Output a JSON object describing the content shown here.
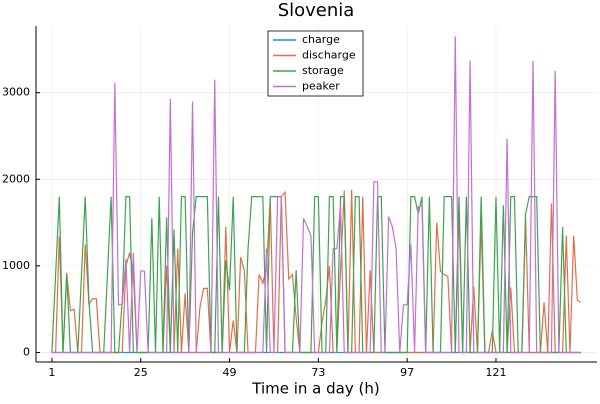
{
  "chart_data": {
    "type": "line",
    "title": "Slovenia",
    "x_label": "Time in a day (h)",
    "x": [
      1,
      2,
      3,
      4,
      5,
      6,
      7,
      8,
      9,
      10,
      11,
      12,
      13,
      14,
      15,
      16,
      17,
      18,
      19,
      20,
      21,
      22,
      23,
      24,
      25,
      26,
      27,
      28,
      29,
      30,
      31,
      32,
      33,
      34,
      35,
      36,
      37,
      38,
      39,
      40,
      41,
      42,
      43,
      44,
      45,
      46,
      47,
      48,
      49,
      50,
      51,
      52,
      53,
      54,
      55,
      56,
      57,
      58,
      59,
      60,
      61,
      62,
      63,
      64,
      65,
      66,
      67,
      68,
      69,
      70,
      71,
      72,
      73,
      74,
      75,
      76,
      77,
      78,
      79,
      80,
      81,
      82,
      83,
      84,
      85,
      86,
      87,
      88,
      89,
      90,
      91,
      92,
      93,
      94,
      95,
      96,
      97,
      98,
      99,
      100,
      101,
      102,
      103,
      104,
      105,
      106,
      107,
      108,
      109,
      110,
      111,
      112,
      113,
      114,
      115,
      116,
      117,
      118,
      119,
      120,
      121,
      122,
      123,
      124,
      125,
      126,
      127,
      128,
      129,
      130,
      131,
      132,
      133,
      134,
      135,
      136,
      137,
      138,
      139,
      140,
      141,
      142,
      143,
      144
    ],
    "series": [
      {
        "name": "charge",
        "color": "#009afa",
        "values": [
          0,
          0,
          0,
          0,
          0,
          0,
          0,
          0,
          0,
          0,
          0,
          0,
          0,
          0,
          0,
          0,
          0,
          0,
          0,
          0,
          0,
          0,
          0,
          0,
          0,
          0,
          0,
          0,
          0,
          0,
          0,
          0,
          0,
          0,
          0,
          0,
          0,
          0,
          0,
          0,
          0,
          0,
          0,
          0,
          0,
          0,
          0,
          0,
          0,
          0,
          0,
          0,
          0,
          0,
          0,
          0,
          0,
          0,
          0,
          0,
          0,
          0,
          0,
          0,
          0,
          0,
          0,
          0,
          0,
          0,
          0,
          0,
          0,
          0,
          0,
          0,
          0,
          0,
          0,
          0,
          0,
          0,
          0,
          0,
          0,
          0,
          0,
          0,
          0,
          0,
          0,
          0,
          0,
          0,
          0,
          0,
          0,
          0,
          0,
          0,
          0,
          0,
          0,
          0,
          0,
          0,
          0,
          0,
          0,
          0,
          0,
          0,
          0,
          0,
          0,
          0,
          0,
          0,
          0,
          0,
          0,
          0,
          0,
          0,
          0,
          0,
          0,
          0,
          0,
          0,
          0,
          0,
          0,
          0,
          0,
          0,
          0,
          0,
          0,
          0,
          0,
          0,
          0,
          0
        ]
      },
      {
        "name": "discharge",
        "color": "#e26f46",
        "values": [
          0,
          0,
          1340,
          0,
          920,
          480,
          500,
          0,
          0,
          1250,
          560,
          620,
          620,
          0,
          0,
          0,
          0,
          0,
          0,
          0,
          1000,
          1150,
          920,
          0,
          0,
          0,
          0,
          0,
          0,
          0,
          0,
          1000,
          0,
          0,
          1200,
          0,
          680,
          0,
          0,
          0,
          520,
          740,
          740,
          0,
          0,
          0,
          0,
          1450,
          0,
          370,
          0,
          1100,
          950,
          0,
          0,
          0,
          900,
          800,
          980,
          1780,
          0,
          0,
          1800,
          1850,
          850,
          900,
          400,
          0,
          0,
          0,
          0,
          0,
          0,
          350,
          600,
          1000,
          0,
          0,
          950,
          1870,
          0,
          1880,
          0,
          0,
          1800,
          0,
          950,
          0,
          0,
          0,
          0,
          0,
          0,
          0,
          0,
          0,
          0,
          0,
          0,
          0,
          0,
          0,
          0,
          0,
          1500,
          940,
          900,
          880,
          0,
          0,
          1620,
          0,
          0,
          0,
          760,
          0,
          1500,
          0,
          0,
          250,
          0,
          0,
          0,
          0,
          750,
          0,
          0,
          0,
          1550,
          0,
          0,
          0,
          0,
          580,
          0,
          1720,
          0,
          0,
          0,
          1350,
          0,
          1350,
          600,
          580
        ]
      },
      {
        "name": "storage",
        "color": "#3ea44e",
        "values": [
          0,
          900,
          1800,
          0,
          900,
          0,
          0,
          0,
          900,
          1800,
          600,
          0,
          0,
          0,
          0,
          900,
          1800,
          0,
          0,
          600,
          1800,
          1800,
          0,
          0,
          0,
          0,
          0,
          1550,
          0,
          1800,
          0,
          1560,
          0,
          1420,
          0,
          1800,
          1800,
          0,
          1380,
          1800,
          1800,
          1800,
          1800,
          0,
          0,
          1800,
          0,
          1060,
          720,
          1800,
          0,
          0,
          0,
          1200,
          1800,
          1800,
          1800,
          1800,
          0,
          1800,
          1800,
          1800,
          1800,
          0,
          0,
          0,
          950,
          0,
          0,
          0,
          0,
          1800,
          1800,
          0,
          0,
          1800,
          1800,
          0,
          1800,
          1800,
          0,
          0,
          1800,
          1800,
          0,
          0,
          0,
          0,
          1800,
          1800,
          0,
          0,
          0,
          0,
          0,
          0,
          0,
          1800,
          1800,
          1600,
          1800,
          0,
          1800,
          0,
          0,
          0,
          1800,
          1800,
          1800,
          0,
          1800,
          0,
          1800,
          0,
          0,
          0,
          1800,
          0,
          0,
          0,
          1800,
          0,
          1700,
          0,
          1800,
          1800,
          0,
          0,
          1600,
          1800,
          1800,
          1800,
          0,
          0,
          0,
          0,
          0,
          0,
          1450,
          0,
          0,
          0,
          0,
          0
        ]
      },
      {
        "name": "peaker",
        "color": "#c270d2",
        "values": [
          0,
          0,
          0,
          0,
          0,
          0,
          0,
          0,
          0,
          0,
          0,
          0,
          0,
          0,
          0,
          0,
          0,
          3110,
          550,
          560,
          1080,
          0,
          1150,
          0,
          940,
          940,
          0,
          0,
          0,
          0,
          0,
          0,
          2930,
          0,
          0,
          0,
          0,
          0,
          2900,
          0,
          0,
          0,
          0,
          0,
          3150,
          0,
          0,
          0,
          0,
          0,
          0,
          0,
          0,
          0,
          0,
          0,
          0,
          0,
          1200,
          0,
          0,
          1800,
          1800,
          0,
          0,
          0,
          0,
          0,
          1550,
          1450,
          1350,
          0,
          0,
          0,
          0,
          0,
          1200,
          1200,
          1700,
          0,
          0,
          0,
          0,
          0,
          0,
          0,
          0,
          1970,
          1970,
          0,
          0,
          1570,
          1450,
          1200,
          0,
          550,
          550,
          1250,
          0,
          1680,
          1700,
          0,
          0,
          0,
          0,
          0,
          0,
          0,
          0,
          3650,
          0,
          0,
          0,
          3370,
          0,
          0,
          0,
          0,
          0,
          0,
          0,
          0,
          0,
          2470,
          0,
          0,
          0,
          0,
          0,
          0,
          3370,
          0,
          0,
          0,
          0,
          0,
          3250,
          0,
          0,
          0,
          0,
          0,
          0,
          0
        ]
      }
    ],
    "xlim": [
      -3.3,
      148.3
    ],
    "ylim": [
      -110,
      3770
    ],
    "xticks": [
      1,
      25,
      49,
      73,
      97,
      121
    ],
    "yticks": [
      0,
      1000,
      2000,
      3000
    ],
    "grid": true,
    "legend": "top"
  }
}
